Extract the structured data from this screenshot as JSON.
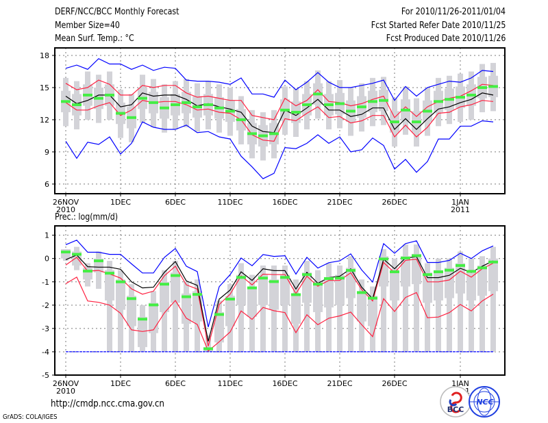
{
  "header": {
    "title": "DERF/NCC/BCC Monthly Forecast",
    "member_size": "Member Size=40",
    "var1_label": "Mean Surf. Temp.: °C",
    "period": "For 2010/11/26-2011/01/04",
    "started": "Fcst Started Refer Date 2010/11/25",
    "produced": "Fcst Produced Date 2010/11/26"
  },
  "footer": {
    "url": "http://cmdp.ncc.cma.gov.cn",
    "credit": "GrADS: COLA/IGES",
    "logo_bcc": "BCC",
    "logo_ncc": "NCC"
  },
  "colors": {
    "max_min": "#0000ff",
    "spread": "#ff2040",
    "mean": "#000000",
    "median": "#44ee44",
    "box": "#d3d3d8"
  },
  "chart_data": [
    {
      "type": "line",
      "title": "Mean Surf. Temp.: °C",
      "x_start": "2010-11-26",
      "days": 40,
      "xticks": [
        {
          "day": 0,
          "label": "26NOV",
          "sub": "2010"
        },
        {
          "day": 5,
          "label": "1DEC"
        },
        {
          "day": 10,
          "label": "6DEC"
        },
        {
          "day": 15,
          "label": "11DEC"
        },
        {
          "day": 20,
          "label": "16DEC"
        },
        {
          "day": 25,
          "label": "21DEC"
        },
        {
          "day": 30,
          "label": "26DEC"
        },
        {
          "day": 36,
          "label": "1JAN",
          "sub": "2011"
        }
      ],
      "yticks": [
        6,
        9,
        12,
        15,
        18
      ],
      "ylim": [
        5.1,
        18.7
      ],
      "grid": true,
      "series": {
        "max": [
          16.8,
          17.1,
          16.7,
          17.7,
          17.2,
          17.2,
          16.7,
          17.1,
          16.6,
          16.9,
          16.8,
          15.7,
          15.6,
          15.6,
          15.5,
          15.3,
          15.9,
          14.4,
          14.4,
          14.1,
          15.7,
          14.8,
          15.5,
          16.4,
          15.5,
          15.0,
          15.0,
          15.2,
          15.4,
          15.7,
          13.8,
          15.1,
          14.2,
          15.0,
          15.3,
          15.6,
          15.5,
          15.9,
          16.6,
          16.5
        ],
        "min": [
          10.0,
          8.4,
          9.9,
          9.7,
          10.4,
          8.8,
          9.8,
          11.8,
          11.3,
          11.1,
          11.1,
          11.5,
          10.8,
          10.9,
          10.4,
          10.2,
          8.6,
          7.6,
          6.5,
          7.0,
          9.4,
          9.3,
          9.8,
          10.6,
          9.8,
          10.4,
          9.0,
          9.2,
          10.3,
          9.6,
          7.4,
          8.3,
          7.1,
          8.1,
          10.2,
          10.2,
          11.4,
          11.4,
          11.9,
          11.8
        ],
        "upper": [
          15.4,
          14.8,
          15.0,
          15.7,
          15.3,
          14.3,
          14.3,
          15.2,
          15.0,
          15.2,
          15.2,
          14.5,
          14.1,
          14.2,
          14.0,
          13.8,
          13.8,
          12.4,
          12.2,
          12.0,
          14.0,
          13.3,
          13.8,
          14.8,
          13.7,
          13.6,
          13.3,
          13.5,
          13.9,
          14.2,
          12.2,
          13.2,
          12.3,
          13.2,
          13.7,
          14.0,
          14.2,
          14.7,
          15.3,
          15.2
        ],
        "lower": [
          13.6,
          12.9,
          12.9,
          13.3,
          13.6,
          12.4,
          12.9,
          13.8,
          13.6,
          13.7,
          13.7,
          13.4,
          12.9,
          13.0,
          12.7,
          12.6,
          12.0,
          10.6,
          10.1,
          10.0,
          12.1,
          11.9,
          12.6,
          13.2,
          12.2,
          12.3,
          11.7,
          11.9,
          12.4,
          12.4,
          10.4,
          11.5,
          10.4,
          11.3,
          12.6,
          12.7,
          13.2,
          13.4,
          13.8,
          13.7
        ],
        "mean": [
          14.2,
          13.5,
          13.8,
          14.3,
          14.3,
          13.2,
          13.4,
          14.5,
          14.2,
          14.3,
          14.3,
          13.9,
          13.3,
          13.5,
          13.2,
          13.0,
          12.7,
          11.4,
          10.9,
          10.8,
          12.9,
          12.4,
          13.1,
          13.9,
          12.9,
          12.9,
          12.3,
          12.5,
          13.1,
          13.1,
          11.1,
          12.1,
          11.1,
          12.1,
          13.0,
          13.2,
          13.6,
          13.9,
          14.5,
          14.3
        ],
        "median": [
          13.7,
          13.4,
          14.3,
          14.0,
          14.3,
          12.6,
          12.2,
          14.0,
          13.6,
          13.1,
          13.4,
          13.6,
          13.2,
          13.4,
          13.1,
          12.8,
          12.0,
          10.7,
          10.5,
          10.7,
          12.9,
          12.7,
          13.4,
          14.4,
          13.4,
          13.5,
          12.8,
          13.2,
          13.7,
          13.8,
          11.8,
          12.9,
          11.8,
          12.8,
          13.7,
          13.9,
          14.1,
          14.3,
          15.0,
          15.1
        ],
        "p90": [
          15.9,
          15.6,
          16.5,
          16.2,
          16.5,
          14.8,
          14.4,
          16.2,
          15.8,
          15.3,
          15.6,
          15.8,
          15.4,
          15.6,
          15.3,
          15.0,
          14.2,
          12.9,
          12.7,
          12.9,
          15.1,
          14.9,
          15.6,
          16.6,
          15.6,
          15.7,
          15.0,
          15.4,
          15.9,
          16.0,
          14.0,
          15.1,
          14.0,
          15.0,
          15.9,
          16.1,
          16.3,
          16.5,
          17.2,
          17.3
        ],
        "p75": [
          14.7,
          14.4,
          15.3,
          15.0,
          15.3,
          13.6,
          13.2,
          15.0,
          14.6,
          14.1,
          14.4,
          14.6,
          14.2,
          14.4,
          14.1,
          13.8,
          13.0,
          11.7,
          11.5,
          11.7,
          13.9,
          13.7,
          14.4,
          15.4,
          14.4,
          14.5,
          13.8,
          14.2,
          14.7,
          14.8,
          12.8,
          13.9,
          12.8,
          13.8,
          14.7,
          14.9,
          15.1,
          15.3,
          16.0,
          16.1
        ],
        "p25": [
          12.7,
          12.4,
          13.3,
          13.0,
          13.3,
          11.6,
          11.2,
          13.0,
          12.6,
          12.1,
          12.4,
          12.6,
          12.2,
          12.4,
          12.1,
          11.8,
          11.0,
          9.7,
          9.5,
          9.7,
          11.9,
          11.7,
          12.4,
          13.4,
          12.4,
          12.5,
          11.8,
          12.2,
          12.7,
          12.8,
          10.8,
          11.9,
          10.8,
          11.8,
          12.7,
          12.9,
          13.1,
          13.3,
          14.0,
          14.1
        ],
        "p10": [
          11.4,
          11.1,
          12.0,
          11.7,
          12.0,
          10.3,
          9.9,
          11.7,
          11.3,
          10.8,
          11.1,
          11.3,
          10.9,
          11.1,
          10.8,
          10.5,
          9.7,
          8.4,
          8.2,
          8.4,
          10.6,
          10.4,
          11.1,
          12.1,
          11.1,
          11.2,
          10.5,
          10.9,
          11.4,
          11.5,
          9.5,
          10.6,
          9.5,
          10.5,
          11.4,
          11.6,
          11.8,
          12.0,
          12.7,
          12.8
        ]
      }
    },
    {
      "type": "line",
      "title": "Prec.: log(mm/d)",
      "x_start": "2010-11-26",
      "days": 40,
      "xticks": [
        {
          "day": 0,
          "label": "26NOV",
          "sub": "2010"
        },
        {
          "day": 5,
          "label": "1DEC"
        },
        {
          "day": 10,
          "label": "6DEC"
        },
        {
          "day": 15,
          "label": "11DEC"
        },
        {
          "day": 20,
          "label": "16DEC"
        },
        {
          "day": 25,
          "label": "21DEC"
        },
        {
          "day": 30,
          "label": "26DEC"
        },
        {
          "day": 36,
          "label": "1JAN",
          "sub": "2011"
        }
      ],
      "yticks": [
        -5,
        -4,
        -3,
        -2,
        -1,
        0,
        1
      ],
      "ylim": [
        -5,
        1.4
      ],
      "grid": true,
      "series": {
        "max": [
          0.59,
          0.79,
          0.27,
          0.27,
          0.18,
          0.18,
          -0.23,
          -0.62,
          -0.62,
          0.05,
          0.43,
          -0.33,
          -0.56,
          -2.94,
          -1.21,
          -0.69,
          0.02,
          -0.31,
          0.17,
          0.09,
          0.12,
          -0.67,
          0.05,
          -0.41,
          -0.18,
          -0.1,
          0.2,
          -0.49,
          -1.01,
          0.64,
          0.23,
          0.64,
          0.76,
          -0.17,
          -0.17,
          -0.08,
          0.23,
          0.0,
          0.33,
          0.54
        ],
        "min": [
          -4,
          -4,
          -4,
          -4,
          -4,
          -4,
          -4,
          -4,
          -4,
          -4,
          -4,
          -4,
          -4,
          -4,
          -4,
          -4,
          -4,
          -4,
          -4,
          -4,
          -4,
          -4,
          -4,
          -4,
          -4,
          -4,
          -4,
          -4,
          -4,
          -4,
          -4,
          -4,
          -4,
          -4,
          -4,
          -4,
          -4,
          -4,
          -4,
          -4
        ],
        "upper": [
          -0.28,
          0.05,
          -0.54,
          -0.51,
          -0.66,
          -0.84,
          -1.3,
          -1.53,
          -1.4,
          -0.74,
          -0.33,
          -1.13,
          -1.31,
          -3.76,
          -1.97,
          -1.53,
          -0.74,
          -1.13,
          -0.67,
          -0.69,
          -0.69,
          -1.51,
          -0.76,
          -1.19,
          -0.94,
          -0.94,
          -0.61,
          -1.33,
          -1.82,
          -0.17,
          -0.61,
          -0.08,
          -0.03,
          -1.0,
          -1.0,
          -0.92,
          -0.54,
          -0.8,
          -0.44,
          -0.2
        ],
        "lower": [
          -1.08,
          -0.8,
          -1.82,
          -1.88,
          -2.0,
          -2.35,
          -3.06,
          -3.13,
          -3.06,
          -2.33,
          -1.8,
          -2.56,
          -2.83,
          -3.97,
          -3.57,
          -3.15,
          -2.25,
          -2.61,
          -2.1,
          -2.24,
          -2.32,
          -3.18,
          -2.41,
          -2.84,
          -2.56,
          -2.46,
          -2.3,
          -2.84,
          -3.35,
          -1.72,
          -2.27,
          -1.67,
          -1.46,
          -2.54,
          -2.51,
          -2.32,
          -1.97,
          -2.25,
          -1.82,
          -1.53
        ],
        "mean": [
          -0.05,
          0.15,
          -0.35,
          -0.37,
          -0.37,
          -0.46,
          -1.0,
          -1.26,
          -1.23,
          -0.59,
          -0.13,
          -0.96,
          -1.15,
          -3.55,
          -1.74,
          -1.35,
          -0.57,
          -0.94,
          -0.44,
          -0.52,
          -0.52,
          -1.31,
          -0.59,
          -1.06,
          -0.82,
          -0.76,
          -0.44,
          -1.23,
          -1.72,
          -0.03,
          -0.44,
          0.02,
          0.08,
          -0.82,
          -0.82,
          -0.72,
          -0.42,
          -0.6,
          -0.33,
          -0.1
        ],
        "median": [
          0.28,
          0.18,
          -0.54,
          -0.1,
          -0.63,
          -1.0,
          -1.72,
          -2.6,
          -1.99,
          -1.1,
          -0.73,
          -1.64,
          -1.54,
          -3.87,
          -2.4,
          -1.74,
          -0.81,
          -1.26,
          -0.84,
          -0.99,
          -0.81,
          -1.55,
          -0.69,
          -1.1,
          -0.86,
          -0.84,
          -0.51,
          -1.46,
          -1.7,
          -0.02,
          -0.57,
          0.02,
          0.12,
          -0.69,
          -0.57,
          -0.5,
          -0.3,
          -0.55,
          -0.4,
          -0.15
        ],
        "p90": [
          0.4,
          0.5,
          -0.2,
          0.3,
          -0.1,
          -0.5,
          -1.1,
          -2.0,
          -1.4,
          -0.5,
          -0.1,
          -1.0,
          -0.9,
          -3.3,
          -1.8,
          -1.1,
          -0.2,
          -0.7,
          -0.3,
          -0.3,
          -0.3,
          -0.9,
          -0.1,
          -0.5,
          -0.2,
          -0.3,
          0.1,
          -0.9,
          -1.2,
          0.4,
          0.0,
          0.6,
          0.6,
          -0.2,
          0.0,
          0.0,
          0.3,
          0.0,
          0.1,
          0.5
        ],
        "p75": [
          0.4,
          0.3,
          -0.4,
          0.0,
          -0.5,
          -0.9,
          -1.6,
          -2.5,
          -1.9,
          -1.0,
          -0.6,
          -1.5,
          -1.4,
          -3.8,
          -2.3,
          -1.6,
          -0.7,
          -1.2,
          -0.7,
          -0.9,
          -0.7,
          -1.5,
          -0.6,
          -1.0,
          -0.8,
          -0.7,
          -0.4,
          -1.4,
          -1.6,
          0.1,
          -0.5,
          0.1,
          0.2,
          -0.6,
          -0.5,
          -0.4,
          -0.2,
          -0.5,
          -0.3,
          0.0
        ],
        "p25": [
          0.0,
          -0.3,
          -0.9,
          -0.6,
          -1.8,
          -2.2,
          -2.9,
          -3.8,
          -3.2,
          -2.3,
          -1.9,
          -2.8,
          -2.7,
          -4.0,
          -3.6,
          -2.9,
          -2.0,
          -2.5,
          -2.0,
          -2.2,
          -2.0,
          -2.8,
          -1.9,
          -2.3,
          -2.1,
          -2.0,
          -1.7,
          -2.7,
          -2.9,
          -1.2,
          -1.8,
          -1.2,
          -1.1,
          -1.9,
          -1.8,
          -1.7,
          -1.5,
          -1.8,
          -1.6,
          -1.4
        ],
        "p10": [
          -0.1,
          -0.5,
          -1.2,
          -1.3,
          -4,
          -4,
          -4,
          -4,
          -4,
          -4,
          -4,
          -4,
          -4,
          -4,
          -4,
          -4,
          -4,
          -4,
          -4,
          -4,
          -4,
          -4,
          -4,
          -4,
          -4,
          -4,
          -4,
          -4,
          -4,
          -4,
          -4,
          -4,
          -4,
          -4,
          -4,
          -4,
          -4,
          -4,
          -4,
          -4
        ]
      }
    }
  ]
}
